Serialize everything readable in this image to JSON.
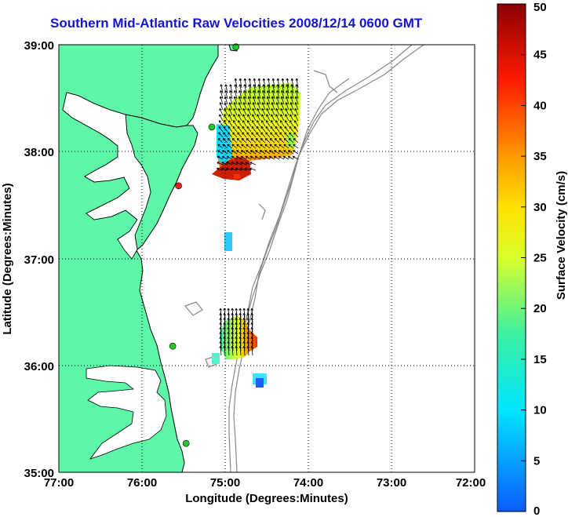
{
  "title": "Southern Mid-Atlantic Raw Velocities 2008/12/14 0600 GMT",
  "map": {
    "lon_range": [
      -77,
      -72
    ],
    "lat_range": [
      35,
      39
    ],
    "x_ticks": [
      "77:00",
      "76:00",
      "75:00",
      "74:00",
      "73:00",
      "72:00"
    ],
    "y_ticks": [
      "39:00",
      "38:00",
      "37:00",
      "36:00",
      "35:00"
    ],
    "xlabel": "Longitude (Degrees:Minutes)",
    "ylabel": "Latitude (Degrees:Minutes)",
    "grid": "dotted",
    "colors": {
      "land": "#5ef7a8",
      "coast": "#000000",
      "bathymetry": "#888888",
      "title": "#1515d0"
    },
    "sites": [
      {
        "lon": -74.87,
        "lat": 38.98,
        "color": "#22cc22"
      },
      {
        "lon": -75.16,
        "lat": 38.23,
        "color": "#22cc22"
      },
      {
        "lon": -75.56,
        "lat": 37.68,
        "color": "#e02020"
      },
      {
        "lon": -75.63,
        "lat": 36.18,
        "color": "#22cc22"
      },
      {
        "lon": -75.47,
        "lat": 35.27,
        "color": "#22cc22"
      }
    ]
  },
  "colorbar": {
    "label": "Surface Velocity (cm/s)",
    "min": 0,
    "max": 50,
    "ticks": [
      "0",
      "5",
      "10",
      "15",
      "20",
      "25",
      "30",
      "35",
      "40",
      "45",
      "50"
    ]
  }
}
